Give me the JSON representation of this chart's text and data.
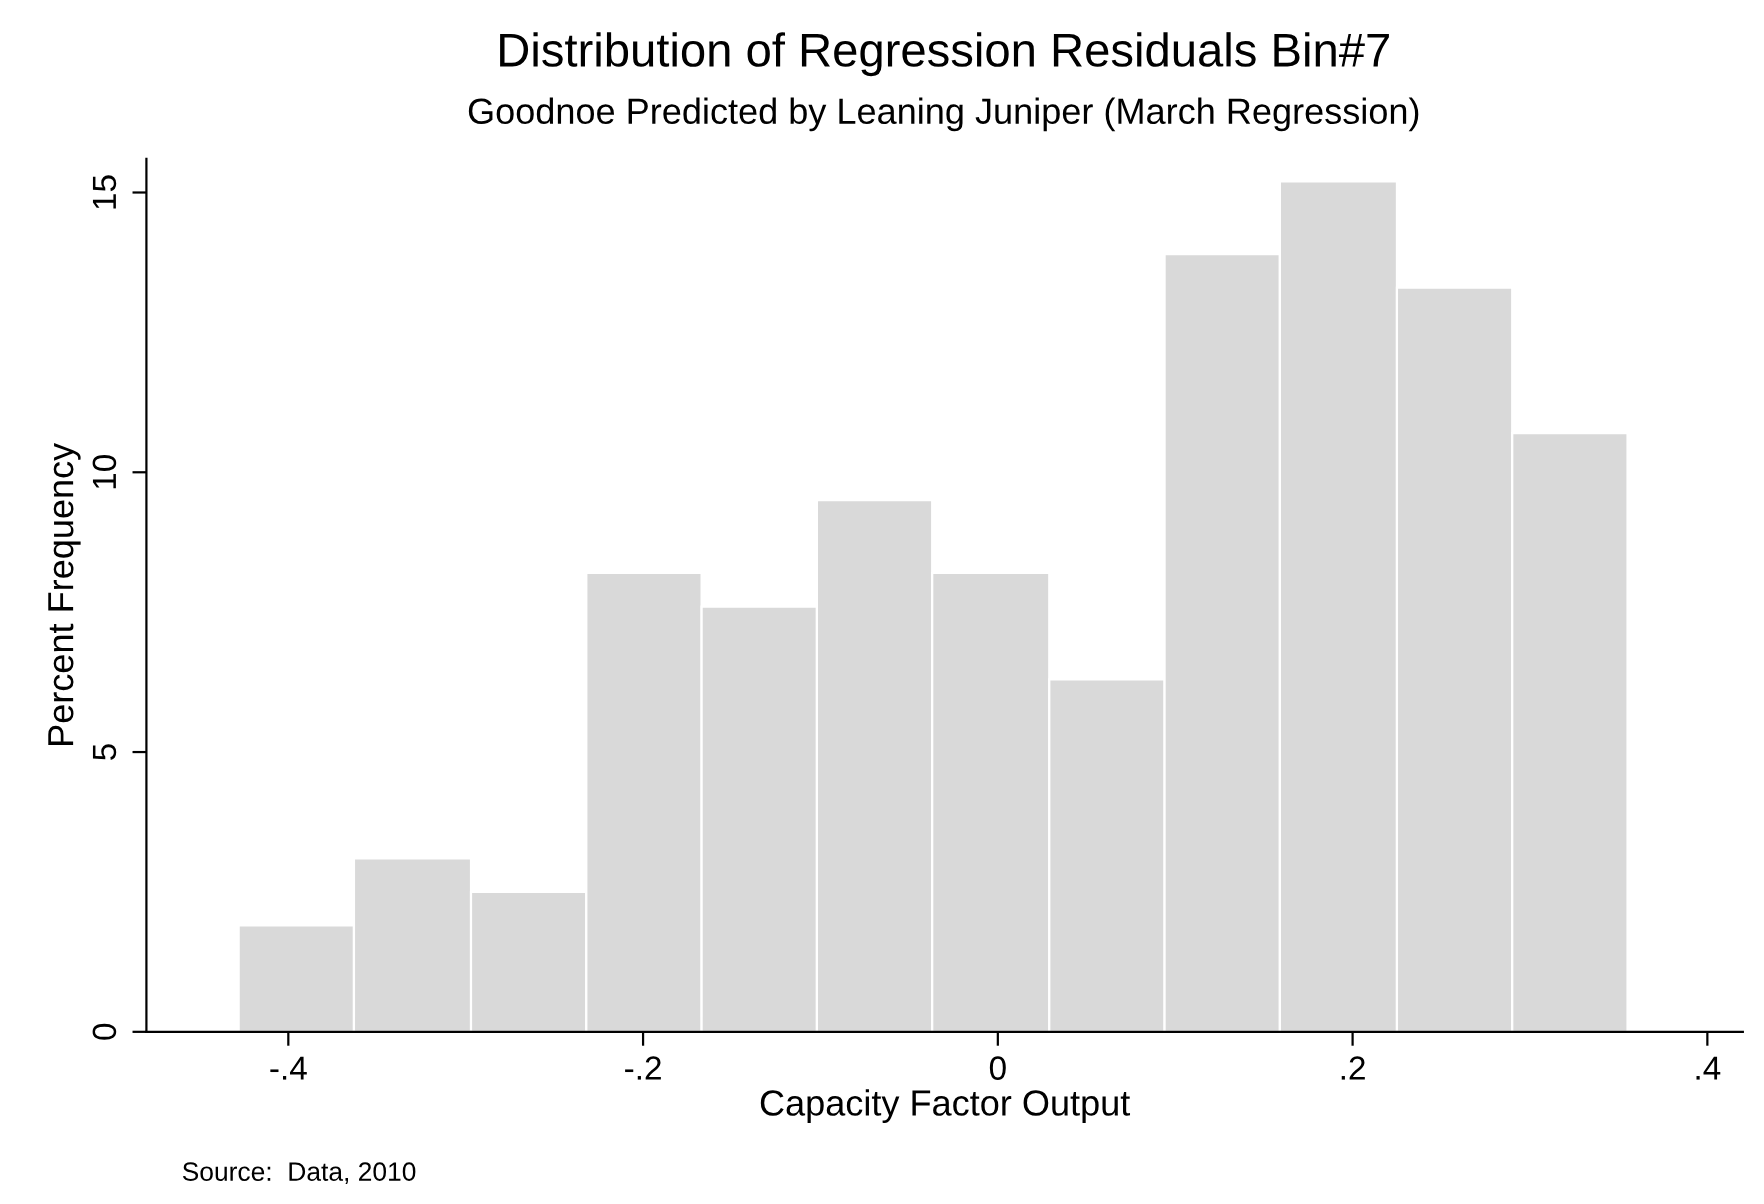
{
  "chart_data": {
    "type": "histogram",
    "title": "Distribution of Regression Residuals Bin#7",
    "subtitle": "Goodnoe Predicted by Leaning Juniper (March Regression)",
    "xlabel": "Capacity Factor Output",
    "ylabel": "Percent Frequency",
    "annotations": [
      "Source:  Data, 2010"
    ],
    "bins": [
      -0.428,
      -0.363,
      -0.297,
      -0.232,
      -0.167,
      -0.102,
      -0.037,
      0.029,
      0.094,
      0.159,
      0.225,
      0.29,
      0.355
    ],
    "values": [
      1.9,
      3.1,
      2.5,
      8.2,
      7.6,
      9.5,
      8.2,
      6.3,
      13.9,
      15.2,
      13.3,
      10.7
    ],
    "color": "#d9d9d9",
    "xlim": [
      -0.48,
      0.42
    ],
    "ylim": [
      0,
      15.6
    ],
    "xticks": [
      {
        "value": -0.4,
        "label": "-.4"
      },
      {
        "value": -0.2,
        "label": "-.2"
      },
      0,
      {
        "value": 0.2,
        "label": ".2"
      },
      {
        "value": 0.4,
        "label": ".4"
      }
    ],
    "yticks": [
      0,
      5,
      10,
      15
    ],
    "grid": false,
    "legend": false
  }
}
